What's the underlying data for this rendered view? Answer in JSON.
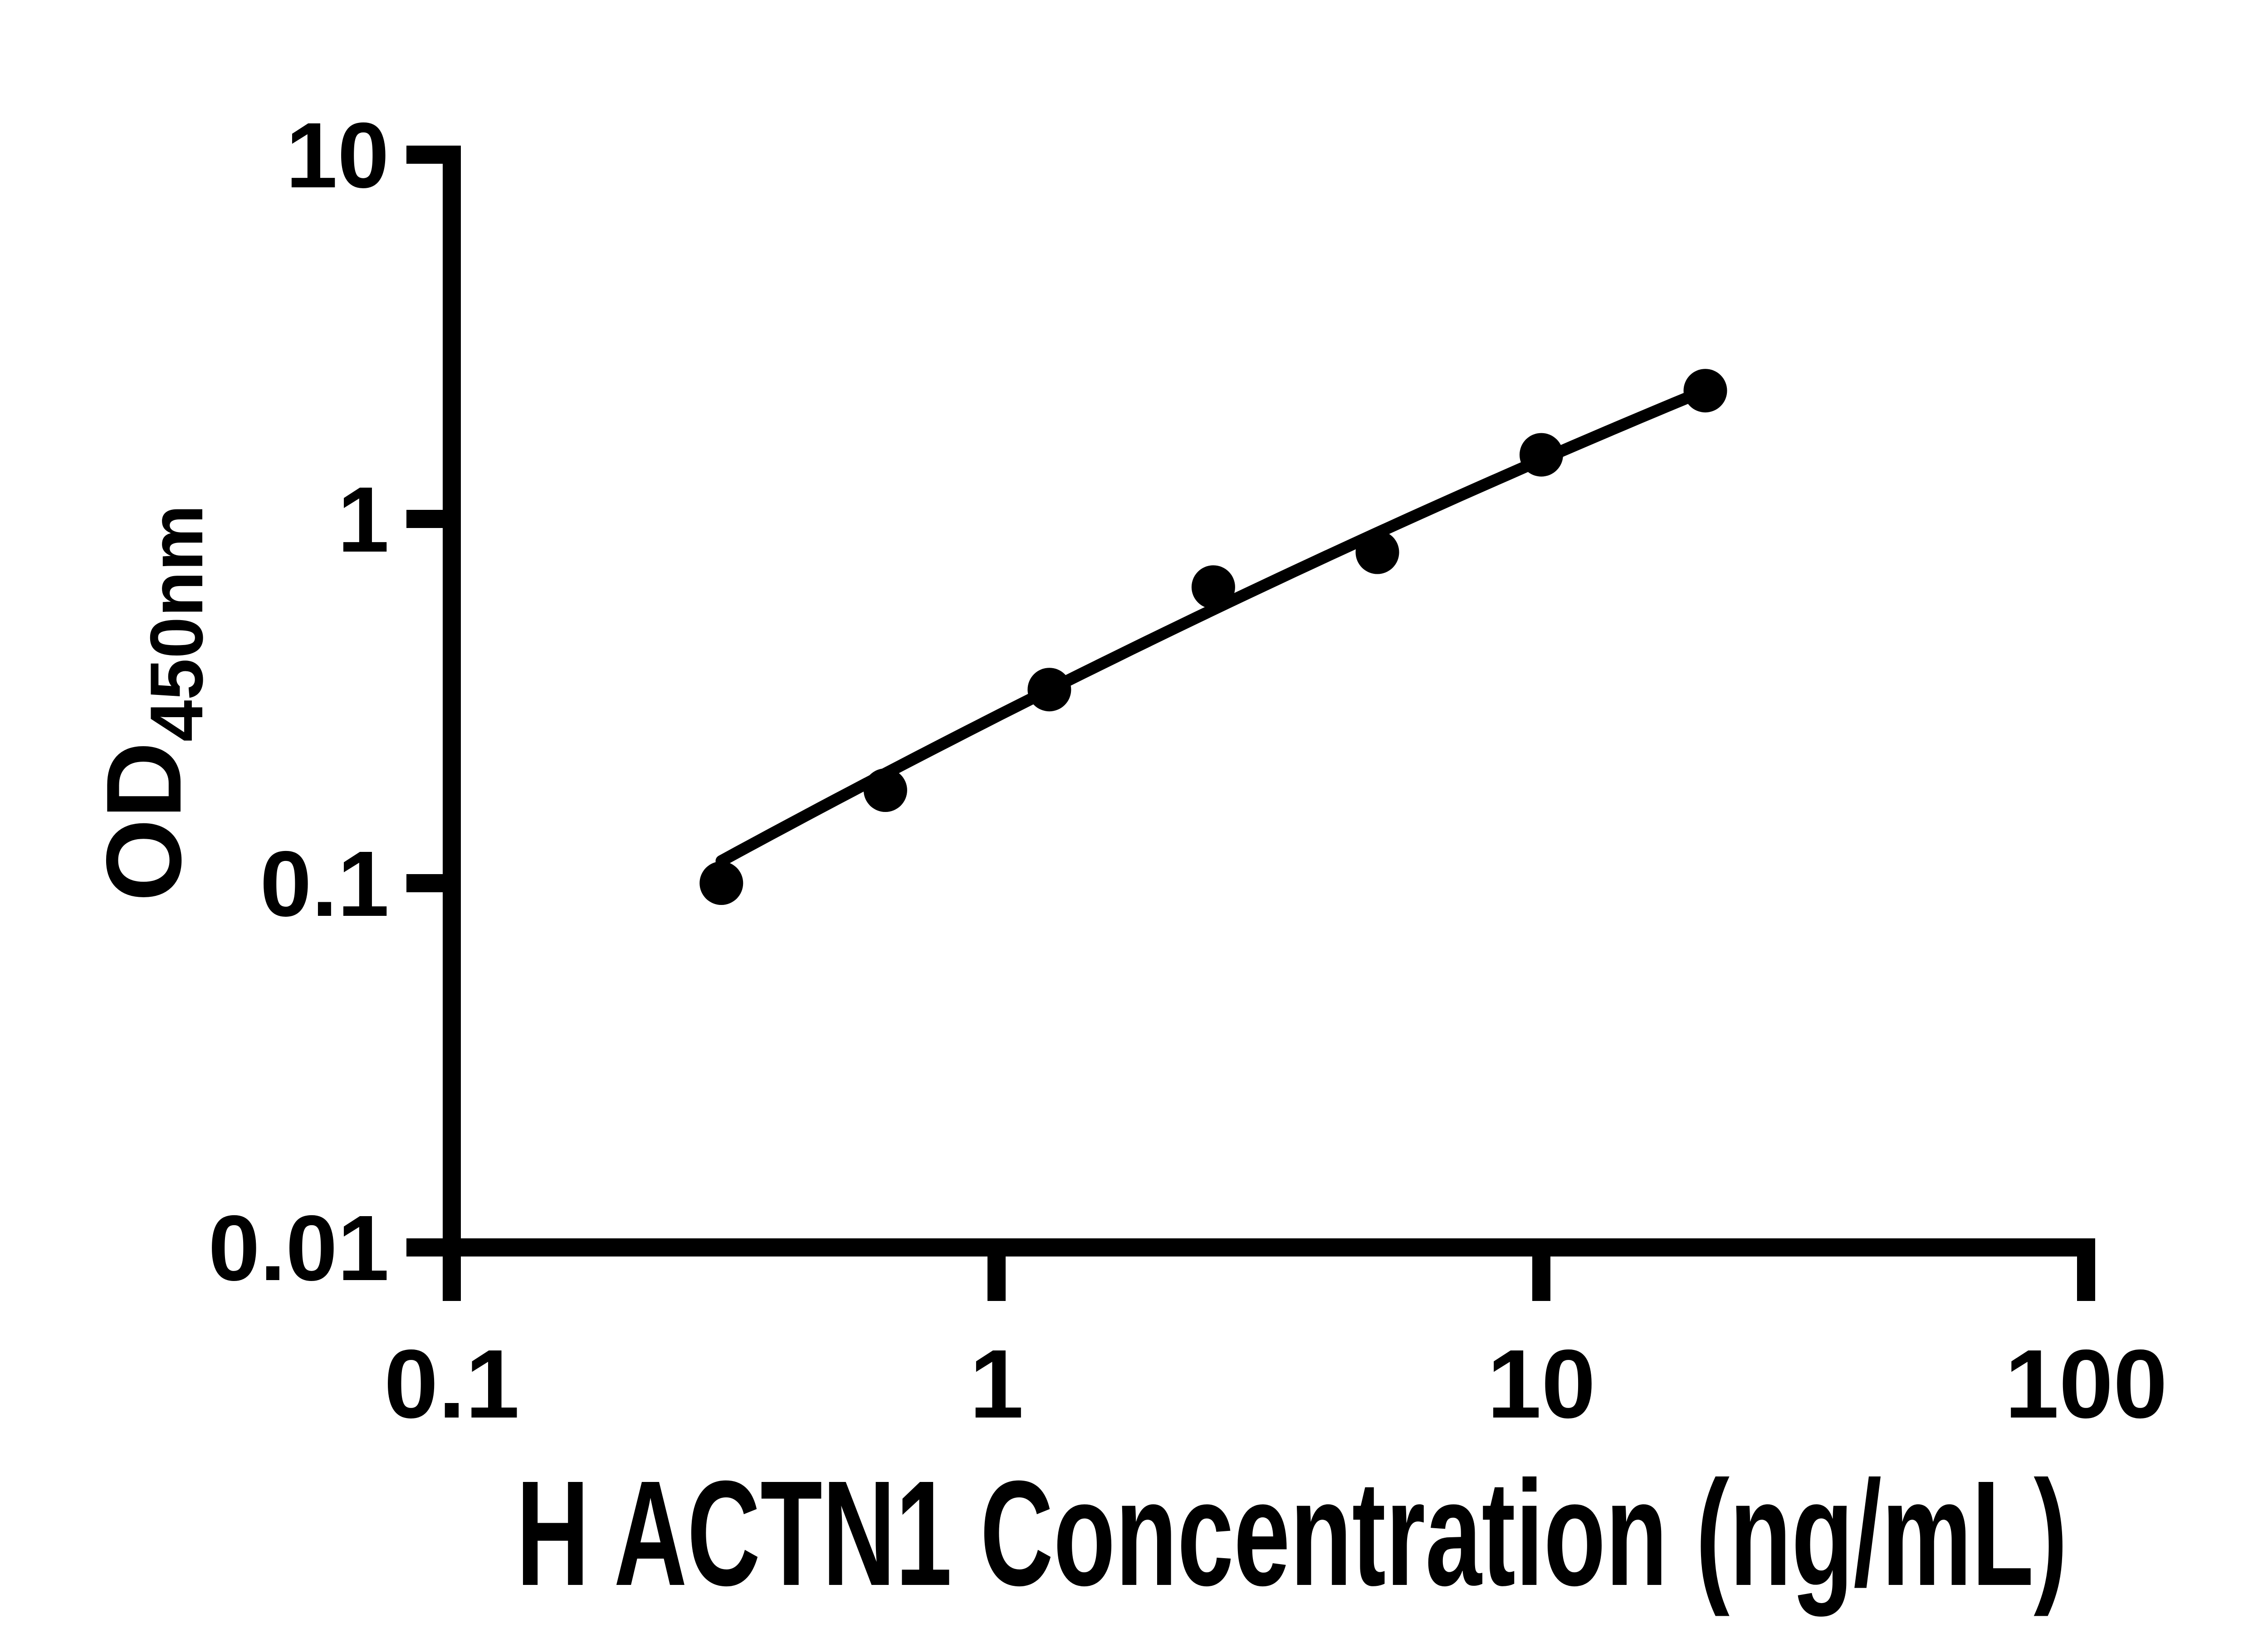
{
  "figure": {
    "background_color": "#ffffff",
    "ink_color": "#000000"
  },
  "chart_data": {
    "type": "scatter",
    "title": "",
    "xlabel": "H ACTN1 Concentration (ng/mL)",
    "ylabel": "OD450nm",
    "ylabel_main": "OD",
    "ylabel_sub": "450nm",
    "x_scale": "log10",
    "y_scale": "log10",
    "xlim": [
      0.1,
      100
    ],
    "ylim": [
      0.01,
      10
    ],
    "x_ticks": [
      0.1,
      1,
      10,
      100
    ],
    "x_tick_labels": [
      "0.1",
      "1",
      "10",
      "100"
    ],
    "y_ticks": [
      0.01,
      0.1,
      1,
      10
    ],
    "y_tick_labels": [
      "0.01",
      "0.1",
      "1",
      "10"
    ],
    "grid": false,
    "legend_position": "none",
    "series": [
      {
        "marker": "filled-circle",
        "marker_color": "#000000",
        "x": [
          0.3125,
          0.625,
          1.25,
          2.5,
          5,
          10,
          20
        ],
        "y": [
          0.1,
          0.18,
          0.34,
          0.65,
          0.81,
          1.5,
          2.25
        ]
      }
    ],
    "fit_curve": {
      "description": "fitted standard curve drawn through the points, approximated as quadratic in log10-log10 space: v = a + b*u + c*u^2 with u = log10(x), v = log10(OD)",
      "a": -0.542,
      "b": 0.7586,
      "c": -0.0543,
      "u_range": [
        -0.505,
        1.301
      ]
    }
  }
}
